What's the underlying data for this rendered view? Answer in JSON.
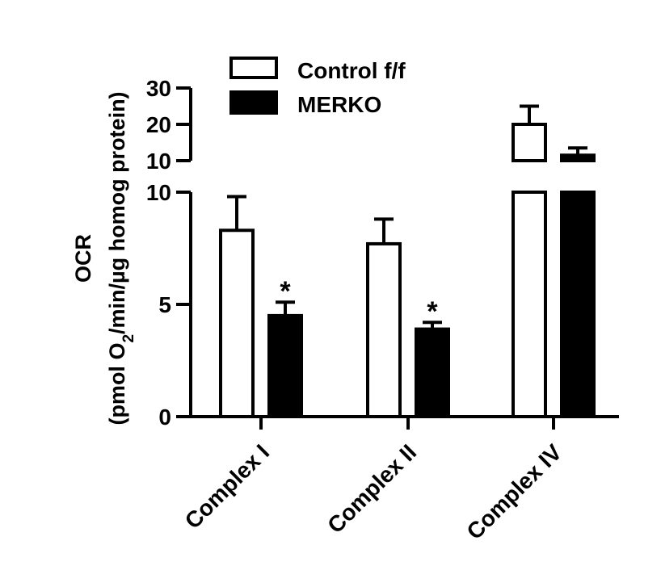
{
  "chart_data": {
    "type": "bar",
    "broken_axis": true,
    "categories": [
      "Complex I",
      "Complex II",
      "Complex IV"
    ],
    "series": [
      {
        "name": "Control f/f",
        "fill": "#ffffff",
        "values": [
          8.3,
          7.7,
          20.0
        ],
        "errors": [
          1.5,
          1.1,
          5.0
        ]
      },
      {
        "name": "MERKO",
        "fill": "#000000",
        "values": [
          4.5,
          3.9,
          11.5
        ],
        "errors": [
          0.6,
          0.3,
          2.0
        ]
      }
    ],
    "annotations": [
      {
        "category": "Complex I",
        "series": "MERKO",
        "text": "*"
      },
      {
        "category": "Complex II",
        "series": "MERKO",
        "text": "*"
      }
    ],
    "ylabel_line1": "OCR",
    "ylabel_pre": "(pmol O",
    "ylabel_sub": "2",
    "ylabel_post": "/min/µg homog protein)",
    "lower_segment": {
      "ylim": [
        0,
        10
      ],
      "ticks": [
        "0",
        "5",
        "10"
      ]
    },
    "upper_segment": {
      "ylim": [
        10,
        30
      ],
      "ticks": [
        "10",
        "20",
        "30"
      ]
    },
    "colors": {
      "axis": "#000000"
    }
  }
}
